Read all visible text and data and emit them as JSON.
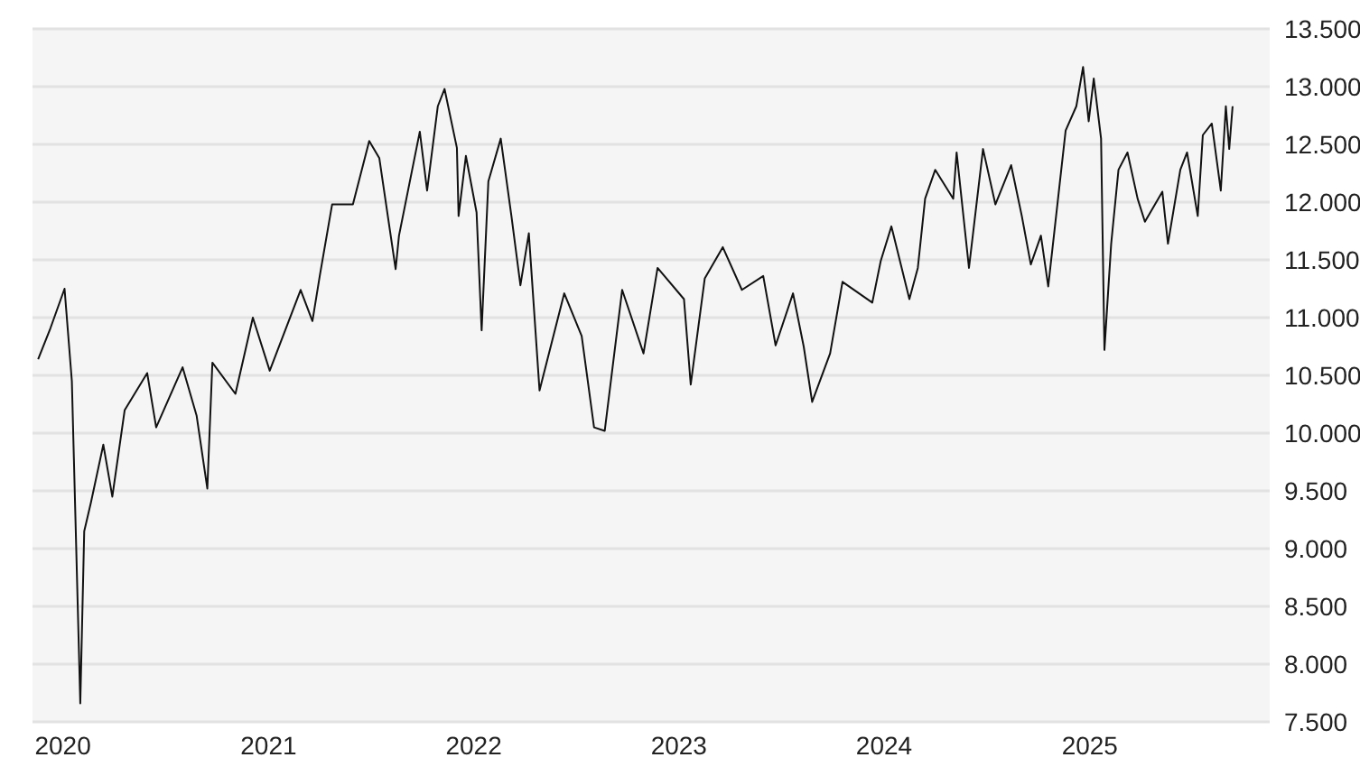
{
  "chart_data": {
    "type": "line",
    "x": [
      "2019-11-18",
      "2019-12-10",
      "2020-01-04",
      "2020-01-17",
      "2020-02-01",
      "2020-02-08",
      "2020-02-20",
      "2020-03-13",
      "2020-03-29",
      "2020-04-20",
      "2020-05-30",
      "2020-06-15",
      "2020-08-01",
      "2020-08-26",
      "2020-09-14",
      "2020-09-23",
      "2020-11-03",
      "2020-12-04",
      "2021-01-03",
      "2021-02-27",
      "2021-03-20",
      "2021-04-02",
      "2021-04-24",
      "2021-05-31",
      "2021-06-29",
      "2021-07-17",
      "2021-08-15",
      "2021-08-21",
      "2021-09-27",
      "2021-10-10",
      "2021-10-29",
      "2021-11-10",
      "2021-12-02",
      "2021-12-05",
      "2021-12-18",
      "2022-01-06",
      "2022-01-15",
      "2022-01-27",
      "2022-02-18",
      "2022-03-09",
      "2022-03-25",
      "2022-04-09",
      "2022-04-28",
      "2022-06-11",
      "2022-07-12",
      "2022-08-03",
      "2022-08-22",
      "2022-09-22",
      "2022-10-30",
      "2022-11-24",
      "2023-01-10",
      "2023-01-22",
      "2023-02-16",
      "2023-03-20",
      "2023-04-23",
      "2023-05-31",
      "2023-06-22",
      "2023-07-23",
      "2023-08-11",
      "2023-08-26",
      "2023-09-27",
      "2023-10-19",
      "2023-12-11",
      "2023-12-26",
      "2024-01-14",
      "2024-02-15",
      "2024-03-01",
      "2024-03-14",
      "2024-04-01",
      "2024-05-03",
      "2024-05-09",
      "2024-05-31",
      "2024-06-25",
      "2024-07-17",
      "2024-08-14",
      "2024-09-02",
      "2024-09-18",
      "2024-10-06",
      "2024-10-19",
      "2024-11-19",
      "2024-12-08",
      "2024-12-20",
      "2024-12-30",
      "2025-01-08",
      "2025-01-21",
      "2025-01-27",
      "2025-02-08",
      "2025-02-21",
      "2025-03-09",
      "2025-03-27",
      "2025-04-09",
      "2025-05-10",
      "2025-05-20",
      "2025-06-11",
      "2025-06-23",
      "2025-07-12",
      "2025-07-21",
      "2025-08-06",
      "2025-08-22",
      "2025-08-31",
      "2025-09-06",
      "2025-09-12"
    ],
    "series": [
      {
        "color": "#111111",
        "values": [
          10640,
          10910,
          11250,
          10450,
          7660,
          9150,
          9400,
          9900,
          9450,
          10200,
          10520,
          10050,
          10570,
          10150,
          9520,
          10610,
          10340,
          11000,
          10540,
          11240,
          10970,
          11360,
          11980,
          11980,
          12530,
          12380,
          11420,
          11710,
          12610,
          12100,
          12830,
          12980,
          12470,
          11880,
          12400,
          11910,
          10890,
          12180,
          12550,
          11880,
          11280,
          11730,
          10370,
          11210,
          10840,
          10050,
          10020,
          11240,
          10690,
          11430,
          11160,
          10420,
          11340,
          11610,
          11240,
          11360,
          10760,
          11210,
          10750,
          10270,
          10690,
          11310,
          11130,
          11490,
          11790,
          11160,
          11430,
          12030,
          12280,
          12030,
          12430,
          11430,
          12460,
          11980,
          12320,
          11880,
          11460,
          11710,
          11270,
          12620,
          12830,
          13170,
          12700,
          13070,
          12550,
          10720,
          11640,
          12280,
          12430,
          12030,
          11830,
          12090,
          11640,
          12280,
          12430,
          11880,
          12580,
          12680,
          12100,
          12830,
          12460,
          12830
        ]
      }
    ],
    "xlim": [
      "2019-11-08",
      "2025-11-17"
    ],
    "xticks": [
      {
        "value": "2020-01-01",
        "label": "2020"
      },
      {
        "value": "2021-01-01",
        "label": "2021"
      },
      {
        "value": "2022-01-01",
        "label": "2022"
      },
      {
        "value": "2023-01-01",
        "label": "2023"
      },
      {
        "value": "2024-01-01",
        "label": "2024"
      },
      {
        "value": "2025-01-01",
        "label": "2025"
      }
    ],
    "ylim": [
      7500,
      13500
    ],
    "yticks": [
      {
        "value": 7500,
        "label": "7.500"
      },
      {
        "value": 8000,
        "label": "8.000"
      },
      {
        "value": 8500,
        "label": "8.500"
      },
      {
        "value": 9000,
        "label": "9.000"
      },
      {
        "value": 9500,
        "label": "9.500"
      },
      {
        "value": 10000,
        "label": "10.000"
      },
      {
        "value": 10500,
        "label": "10.500"
      },
      {
        "value": 11000,
        "label": "11.000"
      },
      {
        "value": 11500,
        "label": "11.500"
      },
      {
        "value": 12000,
        "label": "12.000"
      },
      {
        "value": 12500,
        "label": "12.500"
      },
      {
        "value": 13000,
        "label": "13.000"
      },
      {
        "value": 13500,
        "label": "13.500"
      }
    ],
    "grid": "y"
  }
}
